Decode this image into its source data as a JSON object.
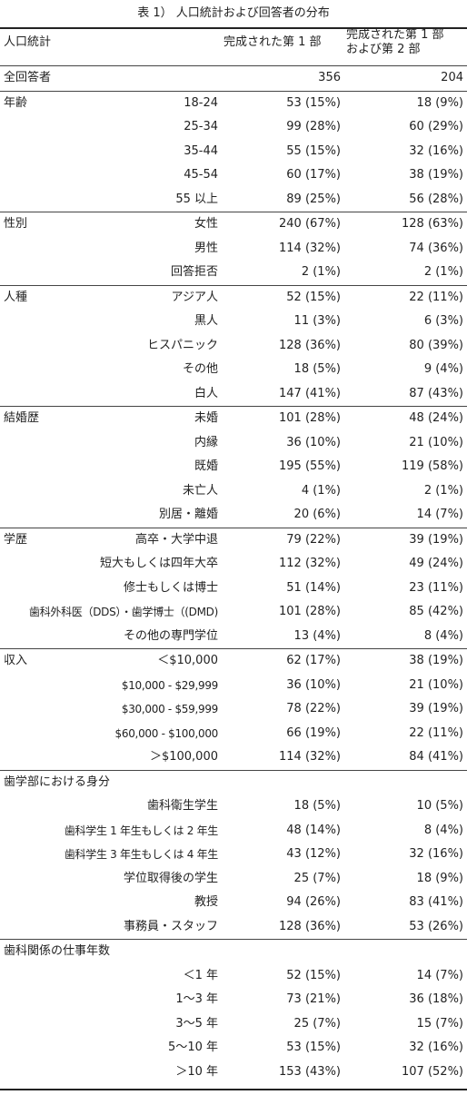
{
  "caption": "表 1） 人口統計および回答者の分布",
  "header": {
    "label": "人口統計",
    "col1": "完成された第 1 部",
    "col2": "完成された第 1 部\nおよび第 2 部"
  },
  "total": {
    "label": "全回答者",
    "v1": "356",
    "v2": "204"
  },
  "groups": [
    {
      "label": "年齢",
      "rows": [
        {
          "sub": "18-24",
          "v1": "53 (15%)",
          "v2": "18 (9%)"
        },
        {
          "sub": "25-34",
          "v1": "99 (28%)",
          "v2": "60 (29%)"
        },
        {
          "sub": "35-44",
          "v1": "55 (15%)",
          "v2": "32 (16%)"
        },
        {
          "sub": "45-54",
          "v1": "60 (17%)",
          "v2": "38 (19%)"
        },
        {
          "sub": "55 以上",
          "v1": "89 (25%)",
          "v2": "56 (28%)"
        }
      ]
    },
    {
      "label": "性別",
      "rows": [
        {
          "sub": "女性",
          "v1": "240 (67%)",
          "v2": "128 (63%)"
        },
        {
          "sub": "男性",
          "v1": "114 (32%)",
          "v2": "74 (36%)"
        },
        {
          "sub": "回答拒否",
          "v1": "2 (1%)",
          "v2": "2 (1%)"
        }
      ]
    },
    {
      "label": "人種",
      "rows": [
        {
          "sub": "アジア人",
          "v1": "52 (15%)",
          "v2": "22 (11%)"
        },
        {
          "sub": "黒人",
          "v1": "11 (3%)",
          "v2": "6 (3%)"
        },
        {
          "sub": "ヒスパニック",
          "v1": "128 (36%)",
          "v2": "80 (39%)"
        },
        {
          "sub": "その他",
          "v1": "18 (5%)",
          "v2": "9 (4%)"
        },
        {
          "sub": "白人",
          "v1": "147 (41%)",
          "v2": "87 (43%)"
        }
      ]
    },
    {
      "label": "結婚歴",
      "rows": [
        {
          "sub": "未婚",
          "v1": "101 (28%)",
          "v2": "48 (24%)"
        },
        {
          "sub": "内縁",
          "v1": "36 (10%)",
          "v2": "21 (10%)"
        },
        {
          "sub": "既婚",
          "v1": "195 (55%)",
          "v2": "119 (58%)"
        },
        {
          "sub": "未亡人",
          "v1": "4 (1%)",
          "v2": "2 (1%)"
        },
        {
          "sub": "別居・離婚",
          "v1": "20 (6%)",
          "v2": "14 (7%)"
        }
      ]
    },
    {
      "label": "学歴",
      "rows": [
        {
          "sub": "高卒・大学中退",
          "v1": "79 (22%)",
          "v2": "39 (19%)"
        },
        {
          "sub": "短大もしくは四年大卒",
          "v1": "112 (32%)",
          "v2": "49 (24%)"
        },
        {
          "sub": "修士もしくは博士",
          "v1": "51 (14%)",
          "v2": "23 (11%)"
        },
        {
          "sub": "歯科外科医（DDS）・歯学博士（(DMD)",
          "v1": "101 (28%)",
          "v2": "85 (42%)"
        },
        {
          "sub": "その他の専門学位",
          "v1": "13 (4%)",
          "v2": "8 (4%)"
        }
      ]
    },
    {
      "label": "収入",
      "rows": [
        {
          "sub": "＜$10,000",
          "v1": "62 (17%)",
          "v2": "38 (19%)"
        },
        {
          "sub": "$10,000 - $29,999",
          "v1": "36 (10%)",
          "v2": "21 (10%)"
        },
        {
          "sub": "$30,000 - $59,999",
          "v1": "78 (22%)",
          "v2": "39 (19%)"
        },
        {
          "sub": "$60,000 - $100,000",
          "v1": "66 (19%)",
          "v2": "22 (11%)"
        },
        {
          "sub": "＞$100,000",
          "v1": "114 (32%)",
          "v2": "84 (41%)"
        }
      ]
    },
    {
      "label": "歯学部における身分",
      "rows": [
        {
          "sub": "歯科衛生学生",
          "v1": "18 (5%)",
          "v2": "10 (5%)"
        },
        {
          "sub": "歯科学生 1 年生もしくは 2 年生",
          "v1": "48 (14%)",
          "v2": "8 (4%)"
        },
        {
          "sub": "歯科学生 3 年生もしくは 4 年生",
          "v1": "43 (12%)",
          "v2": "32 (16%)"
        },
        {
          "sub": "学位取得後の学生",
          "v1": "25 (7%)",
          "v2": "18 (9%)"
        },
        {
          "sub": "教授",
          "v1": "94 (26%)",
          "v2": "83 (41%)"
        },
        {
          "sub": "事務員・スタッフ",
          "v1": "128 (36%)",
          "v2": "53 (26%)"
        }
      ]
    },
    {
      "label": "歯科関係の仕事年数",
      "rows": [
        {
          "sub": "＜1 年",
          "v1": "52 (15%)",
          "v2": "14 (7%)"
        },
        {
          "sub": "1～3 年",
          "v1": "73 (21%)",
          "v2": "36 (18%)"
        },
        {
          "sub": "3～5 年",
          "v1": "25 (7%)",
          "v2": "15 (7%)"
        },
        {
          "sub": "5～10 年",
          "v1": "53 (15%)",
          "v2": "32 (16%)"
        },
        {
          "sub": "＞10 年",
          "v1": "153 (43%)",
          "v2": "107 (52%)"
        }
      ]
    }
  ]
}
